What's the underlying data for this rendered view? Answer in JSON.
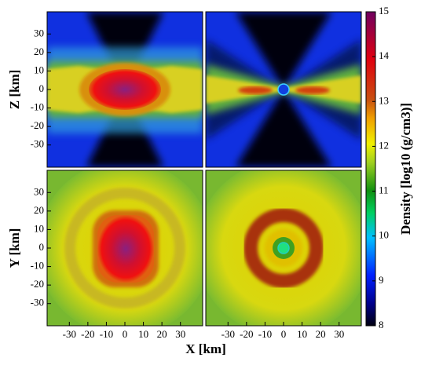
{
  "chart_data": [
    {
      "type": "heatmap",
      "xlim": [
        -42,
        42
      ],
      "ylim": [
        -42,
        42
      ],
      "ylabel": "Z [km]",
      "yticks": [
        -30,
        -20,
        -10,
        0,
        10,
        20,
        30
      ]
    },
    {
      "type": "heatmap",
      "xlim": [
        -42,
        42
      ],
      "ylim": [
        -42,
        42
      ]
    },
    {
      "type": "heatmap",
      "xlim": [
        -42,
        42
      ],
      "ylim": [
        -42,
        42
      ],
      "ylabel": "Y [km]",
      "yticks": [
        -30,
        -20,
        -10,
        0,
        10,
        20,
        30
      ],
      "xticks": [
        -30,
        -20,
        -10,
        0,
        10,
        20,
        30
      ]
    },
    {
      "type": "heatmap",
      "xlim": [
        -42,
        42
      ],
      "ylim": [
        -42,
        42
      ],
      "xlabel": "X [km]",
      "xticks": [
        -30,
        -20,
        -10,
        0,
        10,
        20,
        30
      ]
    },
    {
      "type": "colorbar",
      "ylim": [
        8,
        15
      ],
      "yticks": [
        8,
        9,
        10,
        11,
        12,
        13,
        14,
        15
      ],
      "ylabel": "Density [log10 (g/cm3)]"
    }
  ]
}
